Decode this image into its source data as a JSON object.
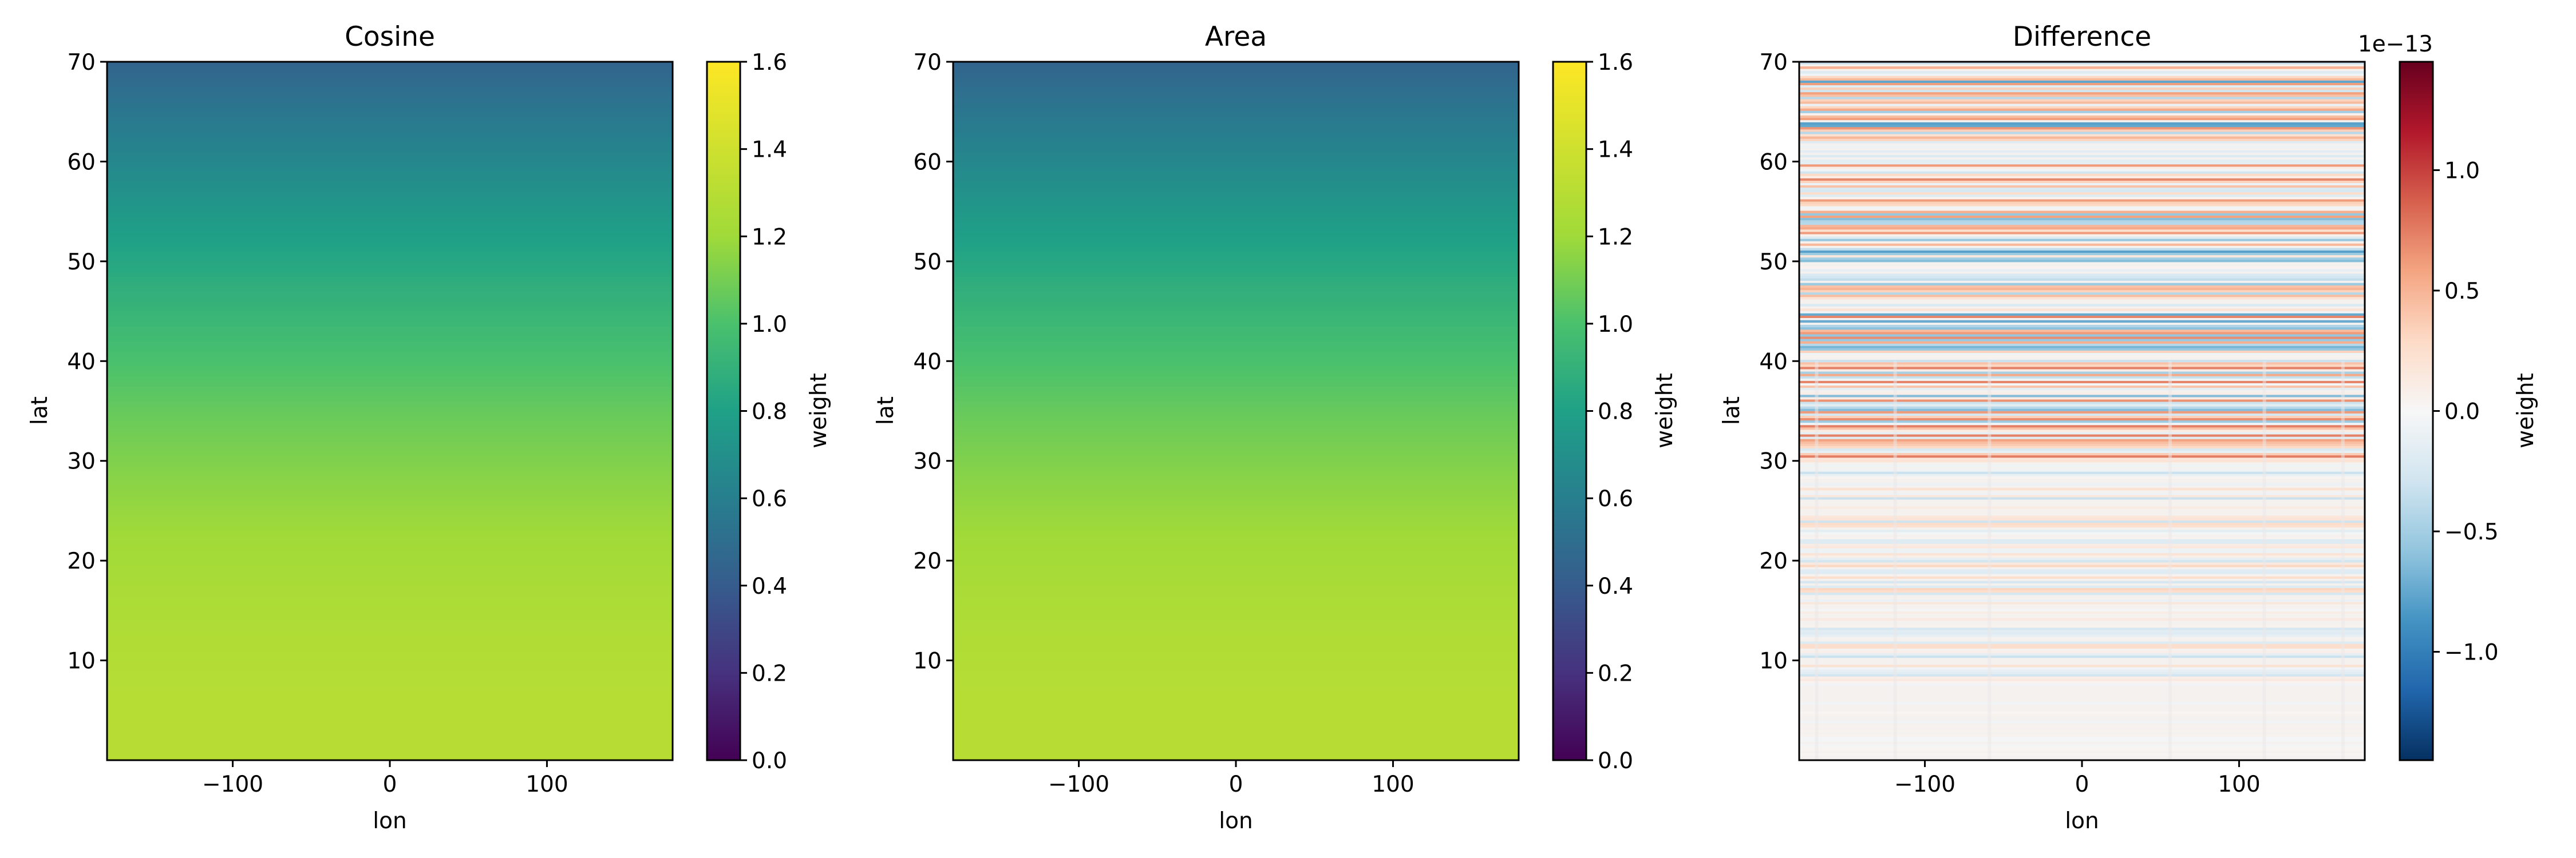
{
  "chart_data": [
    {
      "type": "heatmap",
      "title": "Cosine",
      "xlabel": "lon",
      "ylabel": "lat",
      "xlim": [
        -180,
        180
      ],
      "ylim": [
        0,
        70
      ],
      "xticks": [
        -100,
        0,
        100
      ],
      "yticks": [
        10,
        20,
        30,
        40,
        50,
        60,
        70
      ],
      "value_formula": "weight = 1.3 * cos(lat)",
      "colorbar": {
        "label": "weight",
        "colormap": "viridis",
        "range": [
          0.0,
          1.6
        ],
        "ticks": [
          0.0,
          0.2,
          0.4,
          0.6,
          0.8,
          1.0,
          1.2,
          1.4,
          1.6
        ],
        "tick_labels": [
          "0.0",
          "0.2",
          "0.4",
          "0.6",
          "0.8",
          "1.0",
          "1.2",
          "1.4",
          "1.6"
        ]
      }
    },
    {
      "type": "heatmap",
      "title": "Area",
      "xlabel": "lon",
      "ylabel": "lat",
      "xlim": [
        -180,
        180
      ],
      "ylim": [
        0,
        70
      ],
      "xticks": [
        -100,
        0,
        100
      ],
      "yticks": [
        10,
        20,
        30,
        40,
        50,
        60,
        70
      ],
      "value_formula": "weight = 1.3 * cos(lat)",
      "colorbar": {
        "label": "weight",
        "colormap": "viridis",
        "range": [
          0.0,
          1.6
        ],
        "ticks": [
          0.0,
          0.2,
          0.4,
          0.6,
          0.8,
          1.0,
          1.2,
          1.4,
          1.6
        ],
        "tick_labels": [
          "0.0",
          "0.2",
          "0.4",
          "0.6",
          "0.8",
          "1.0",
          "1.2",
          "1.4",
          "1.6"
        ]
      }
    },
    {
      "type": "heatmap",
      "title": "Difference",
      "xlabel": "lon",
      "ylabel": "lat",
      "xlim": [
        -180,
        180
      ],
      "ylim": [
        0,
        70
      ],
      "xticks": [
        -100,
        0,
        100
      ],
      "yticks": [
        10,
        20,
        30,
        40,
        50,
        60,
        70
      ],
      "value_description": "tiny floating-point noise (~1e-13) varying by lat band, strongest between lat 30 and 70",
      "colorbar": {
        "label": "weight",
        "colormap": "RdBu_r",
        "range": [
          -1.45e-13,
          1.45e-13
        ],
        "offset_text": "1e−13",
        "ticks": [
          -1.0,
          -0.5,
          0.0,
          0.5,
          1.0
        ],
        "tick_labels": [
          "−1.0",
          "−0.5",
          "0.0",
          "0.5",
          "1.0"
        ]
      }
    }
  ]
}
